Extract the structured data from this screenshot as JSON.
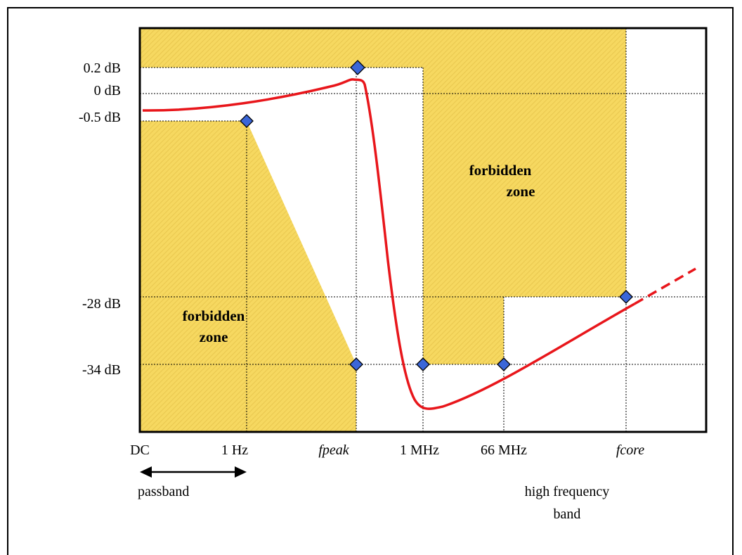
{
  "y_axis": {
    "ticks": [
      "0.2 dB",
      "0 dB",
      "-0.5 dB",
      "-28 dB",
      "-34 dB"
    ]
  },
  "x_axis": {
    "ticks": [
      "DC",
      "1 Hz",
      "fpeak",
      "1 MHz",
      "66 MHz",
      "fcore"
    ]
  },
  "zones": {
    "left_line1": "forbidden",
    "left_line2": "zone",
    "right_line1": "forbidden",
    "right_line2": "zone"
  },
  "bands": {
    "passband": "passband",
    "high_line1": "high frequency",
    "high_line2": "band"
  },
  "colors": {
    "zone_fill": "#f6d860",
    "zone_hatch": "#e8c444",
    "curve": "#e8161b",
    "marker": "#3a66d8",
    "grid": "#000000"
  }
}
